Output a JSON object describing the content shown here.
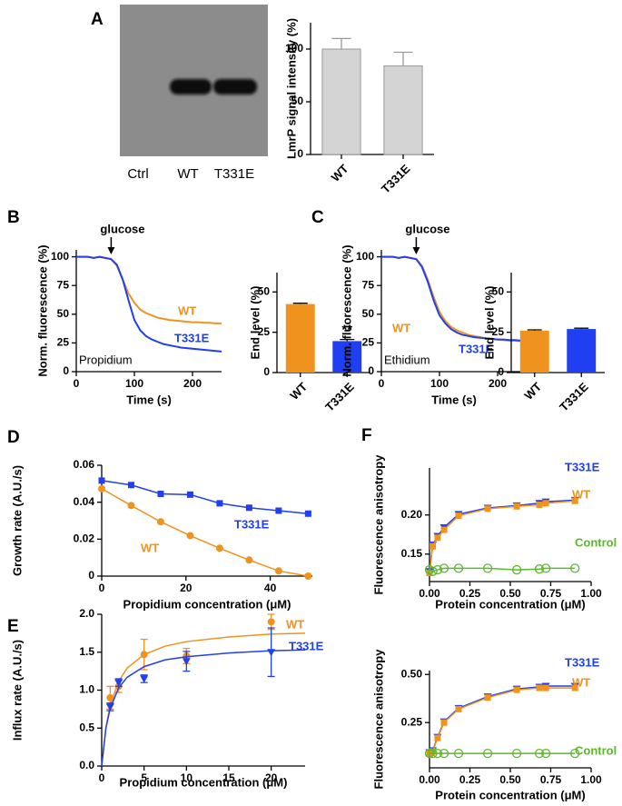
{
  "blot": {
    "lanes": [
      "Ctrl",
      "WT",
      "T331E"
    ]
  },
  "chart_data": [
    {
      "panel": "A",
      "type": "bar",
      "ylabel": "LmrP signal intensity (%)",
      "categories": [
        "WT",
        "T331E"
      ],
      "values": [
        100,
        84
      ],
      "errors": [
        10,
        13
      ],
      "color": "#d4d4d4",
      "ylim": [
        0,
        125
      ],
      "yticks": [
        0,
        50,
        100
      ]
    },
    {
      "panel": "B",
      "type": "line",
      "xlabel": "Time (s)",
      "ylabel": "Norm. fluorescence (%)",
      "label": "Propidium",
      "annotation": "glucose",
      "annotation_x": 60,
      "x": [
        0,
        10,
        20,
        30,
        40,
        50,
        60,
        70,
        80,
        90,
        100,
        110,
        120,
        130,
        140,
        150,
        160,
        170,
        180,
        190,
        200,
        210,
        220,
        230,
        240,
        250
      ],
      "series": [
        {
          "name": "WT",
          "color": "#f0921e",
          "values": [
            100,
            100,
            100,
            99,
            100,
            99,
            98,
            92,
            80,
            68,
            60,
            54,
            51,
            49,
            47,
            46,
            45,
            44.5,
            44,
            43.5,
            43,
            43,
            42.5,
            42.5,
            42,
            42
          ]
        },
        {
          "name": "T331E",
          "color": "#1f3ff0",
          "values": [
            100,
            100,
            100,
            99,
            100,
            99,
            98,
            93,
            80,
            62,
            45,
            36,
            31,
            28,
            26,
            24,
            23,
            22,
            21,
            20.5,
            20,
            19.5,
            19,
            18.5,
            18,
            17.5
          ]
        }
      ],
      "xlim": [
        0,
        250
      ],
      "ylim": [
        0,
        106
      ],
      "xticks": [
        0,
        100,
        200
      ],
      "yticks": [
        0,
        25,
        50,
        75,
        100
      ]
    },
    {
      "type": "bar",
      "ylabel": "End level (%)",
      "categories": [
        "WT",
        "T331E"
      ],
      "values": [
        42.5,
        19.5
      ],
      "errors": [
        0.5,
        1
      ],
      "colors": [
        "#f0921e",
        "#1f3ff0"
      ],
      "annotation": "**",
      "ylim": [
        0,
        62
      ],
      "yticks": [
        0,
        25,
        50
      ]
    },
    {
      "panel": "C",
      "type": "line",
      "xlabel": "Time (s)",
      "ylabel": "Norm. fluorescence (%)",
      "label": "Ethidium",
      "annotation": "glucose",
      "annotation_x": 60,
      "x": [
        0,
        10,
        20,
        30,
        40,
        50,
        60,
        70,
        80,
        90,
        100,
        110,
        120,
        130,
        140,
        150,
        160,
        170,
        180,
        190,
        200,
        210,
        220,
        230,
        240,
        250
      ],
      "series": [
        {
          "name": "WT",
          "color": "#f0921e",
          "values": [
            100,
            100,
            100,
            99,
            100,
            99,
            98,
            92,
            80,
            65,
            52,
            44,
            39,
            36,
            34,
            32,
            31,
            30,
            29,
            28.5,
            28,
            27.5,
            27,
            27,
            26.5,
            26
          ]
        },
        {
          "name": "T331E",
          "color": "#1f3ff0",
          "values": [
            100,
            100,
            100,
            99,
            100,
            99,
            98,
            91,
            78,
            62,
            49,
            42,
            37,
            34,
            32,
            31,
            30,
            29.5,
            29,
            28.5,
            28,
            28,
            27.5,
            27.5,
            27,
            27
          ]
        }
      ],
      "xlim": [
        0,
        250
      ],
      "ylim": [
        0,
        106
      ],
      "xticks": [
        0,
        100,
        200
      ],
      "yticks": [
        0,
        25,
        50,
        75,
        100
      ]
    },
    {
      "type": "bar",
      "ylabel": "End level (%)",
      "categories": [
        "WT",
        "T331E"
      ],
      "values": [
        26,
        27
      ],
      "errors": [
        0.5,
        0.5
      ],
      "colors": [
        "#f0921e",
        "#1f3ff0"
      ],
      "ylim": [
        0,
        62
      ],
      "yticks": [
        0,
        25,
        50
      ]
    },
    {
      "panel": "D",
      "type": "line",
      "xlabel": "Propidium concentration (μM)",
      "ylabel": "Growth rate (A.U./s)",
      "x": [
        0,
        7,
        14,
        21,
        28,
        35,
        42,
        49
      ],
      "series": [
        {
          "name": "T331E",
          "color": "#1f3ff0",
          "marker": "square",
          "values": [
            0.0517,
            0.0493,
            0.0445,
            0.0441,
            0.0394,
            0.037,
            0.0354,
            0.0338
          ]
        },
        {
          "name": "WT",
          "color": "#f0921e",
          "marker": "circle",
          "values": [
            0.0473,
            0.0382,
            0.0294,
            0.0219,
            0.0151,
            0.0087,
            0.0028,
            0
          ]
        }
      ],
      "xlim": [
        0,
        50
      ],
      "ylim": [
        0,
        0.06
      ],
      "xticks": [
        0,
        20,
        40
      ],
      "yticks": [
        0,
        0.02,
        0.04,
        0.06
      ]
    },
    {
      "panel": "E",
      "type": "scatter",
      "xlabel": "Propidium concentration (μM)",
      "ylabel": "Influx rate (A.U./s)",
      "x": [
        1,
        2,
        5,
        10,
        20
      ],
      "series": [
        {
          "name": "WT",
          "color": "#f0921e",
          "marker": "circle",
          "values": [
            0.9,
            1.05,
            1.47,
            1.45,
            1.9
          ],
          "errors": [
            0.15,
            0.08,
            0.2,
            0.1,
            0.1
          ],
          "fit": {
            "x": [
              0,
              0.5,
              1,
              2,
              3,
              5,
              7.5,
              10,
              15,
              20,
              24
            ],
            "y": [
              0,
              0.51,
              0.8,
              1.12,
              1.29,
              1.47,
              1.58,
              1.64,
              1.7,
              1.74,
              1.75
            ]
          }
        },
        {
          "name": "T331E",
          "color": "#1f3ff0",
          "marker": "triangle-down",
          "values": [
            0.78,
            1.1,
            1.15,
            1.38,
            1.5
          ],
          "errors": [
            0.05,
            0.05,
            0.05,
            0.13,
            0.32
          ],
          "fit": {
            "x": [
              0,
              0.5,
              1,
              2,
              3,
              5,
              7.5,
              10,
              15,
              20,
              24
            ],
            "y": [
              0,
              0.5,
              0.76,
              1.03,
              1.17,
              1.31,
              1.4,
              1.44,
              1.49,
              1.52,
              1.53
            ]
          }
        }
      ],
      "xlim": [
        0,
        24
      ],
      "ylim": [
        0,
        2
      ],
      "xticks": [
        0,
        5,
        10,
        15,
        20
      ],
      "yticks": [
        {
          "value": 0,
          "label": "0.0"
        },
        0.5,
        {
          "value": 1,
          "label": "1.0"
        },
        1.5,
        {
          "value": 2,
          "label": "2.0"
        }
      ]
    },
    {
      "panel": "F",
      "type": "line",
      "xlabel": "Protein concentration (μM)",
      "ylabel": "Fluorescence anisotropy",
      "x": [
        0,
        0.02,
        0.05,
        0.09,
        0.18,
        0.36,
        0.54,
        0.68,
        0.72,
        0.9
      ],
      "series": [
        {
          "name": "T331E",
          "color": "#1f3ff0",
          "marker": "triangle-down",
          "values": [
            0.128,
            0.162,
            0.173,
            0.184,
            0.201,
            0.209,
            0.212,
            0.215,
            0.217,
            0.219
          ]
        },
        {
          "name": "WT",
          "color": "#f0921e",
          "marker": "square",
          "values": [
            0.126,
            0.16,
            0.171,
            0.181,
            0.199,
            0.208,
            0.211,
            0.213,
            0.215,
            0.218
          ]
        },
        {
          "name": "Control",
          "color": "#5cb82d",
          "marker": "circle-open",
          "values": [
            0.13,
            0.128,
            0.13,
            0.132,
            0.132,
            0.132,
            0.13,
            0.131,
            0.132,
            0.132
          ]
        }
      ],
      "xlim": [
        0,
        1
      ],
      "ylim": [
        0.115,
        0.26
      ],
      "xticks": [
        {
          "value": 0,
          "label": "0.00"
        },
        0.25,
        {
          "value": 0.5,
          "label": "0.50"
        },
        0.75,
        {
          "value": 1,
          "label": "1.00"
        }
      ],
      "yticks": [
        0.15,
        {
          "value": 0.2,
          "label": "0.20"
        }
      ]
    },
    {
      "type": "line",
      "xlabel": "Protein concentration (μM)",
      "ylabel": "Fluorescence anisotropy",
      "x": [
        0,
        0.02,
        0.05,
        0.09,
        0.18,
        0.36,
        0.54,
        0.68,
        0.72,
        0.9
      ],
      "series": [
        {
          "name": "T331E",
          "color": "#1f3ff0",
          "marker": "triangle-down",
          "values": [
            0.095,
            0.105,
            0.175,
            0.255,
            0.325,
            0.385,
            0.425,
            0.435,
            0.44,
            0.44
          ]
        },
        {
          "name": "WT",
          "color": "#f0921e",
          "marker": "square",
          "values": [
            0.09,
            0.1,
            0.17,
            0.25,
            0.32,
            0.38,
            0.42,
            0.43,
            0.43,
            0.43
          ]
        },
        {
          "name": "Control",
          "color": "#5cb82d",
          "marker": "circle-open",
          "values": [
            0.09,
            0.09,
            0.09,
            0.09,
            0.09,
            0.09,
            0.09,
            0.09,
            0.09,
            0.09
          ]
        }
      ],
      "xlim": [
        0,
        1
      ],
      "ylim": [
        0.015,
        0.52
      ],
      "xticks": [
        {
          "value": 0,
          "label": "0.00"
        },
        0.25,
        {
          "value": 0.5,
          "label": "0.50"
        },
        0.75,
        {
          "value": 1,
          "label": "1.00"
        }
      ],
      "yticks": [
        0.25,
        {
          "value": 0.5,
          "label": "0.50"
        }
      ]
    }
  ]
}
